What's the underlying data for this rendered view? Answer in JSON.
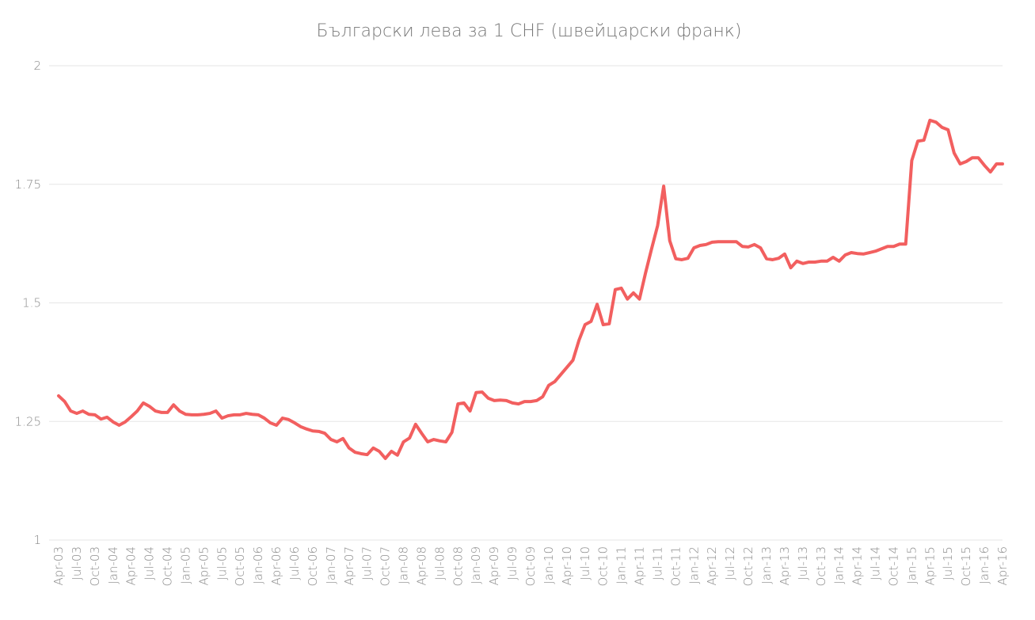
{
  "chart_data": {
    "type": "line",
    "title": "Български лева за 1 CHF (швейцарски франк)",
    "categories": [
      "Apr-03",
      null,
      null,
      "Jul-03",
      null,
      null,
      "Oct-03",
      null,
      null,
      "Jan-04",
      null,
      null,
      "Apr-04",
      null,
      null,
      "Jul-04",
      null,
      null,
      "Oct-04",
      null,
      null,
      "Jan-05",
      null,
      null,
      "Apr-05",
      null,
      null,
      "Jul-05",
      null,
      null,
      "Oct-05",
      null,
      null,
      "Jan-06",
      null,
      null,
      "Apr-06",
      null,
      null,
      "Jul-06",
      null,
      null,
      "Oct-06",
      null,
      null,
      "Jan-07",
      null,
      null,
      "Apr-07",
      null,
      null,
      "Jul-07",
      null,
      null,
      "Oct-07",
      null,
      null,
      "Jan-08",
      null,
      null,
      "Apr-08",
      null,
      null,
      "Jul-08",
      null,
      null,
      "Oct-08",
      null,
      null,
      "Jan-09",
      null,
      null,
      "Apr-09",
      null,
      null,
      "Jul-09",
      null,
      null,
      "Oct-09",
      null,
      null,
      "Jan-10",
      null,
      null,
      "Apr-10",
      null,
      null,
      "Jul-10",
      null,
      null,
      "Oct-10",
      null,
      null,
      "Jan-11",
      null,
      null,
      "Apr-11",
      null,
      null,
      "Jul-11",
      null,
      null,
      "Oct-11",
      null,
      null,
      "Jan-12",
      null,
      null,
      "Apr-12",
      null,
      null,
      "Jul-12",
      null,
      null,
      "Oct-12",
      null,
      null,
      "Jan-13",
      null,
      null,
      "Apr-13",
      null,
      null,
      "Jul-13",
      null,
      null,
      "Oct-13",
      null,
      null,
      "Jan-14",
      null,
      null,
      "Apr-14",
      null,
      null,
      "Jul-14",
      null,
      null,
      "Oct-14",
      null,
      null,
      "Jan-15",
      null,
      null,
      "Apr-15",
      null,
      null,
      "Jul-15",
      null,
      null,
      "Oct-15",
      null,
      null,
      "Jan-16",
      null,
      null,
      "Apr-16"
    ],
    "values": [
      1.304,
      1.292,
      1.272,
      1.267,
      1.272,
      1.265,
      1.264,
      1.255,
      1.259,
      1.249,
      1.242,
      1.249,
      1.26,
      1.272,
      1.289,
      1.282,
      1.272,
      1.269,
      1.269,
      1.285,
      1.272,
      1.265,
      1.264,
      1.264,
      1.265,
      1.267,
      1.272,
      1.257,
      1.262,
      1.264,
      1.264,
      1.267,
      1.265,
      1.264,
      1.257,
      1.247,
      1.242,
      1.257,
      1.254,
      1.247,
      1.239,
      1.234,
      1.23,
      1.229,
      1.225,
      1.212,
      1.207,
      1.214,
      1.194,
      1.185,
      1.182,
      1.18,
      1.194,
      1.187,
      1.172,
      1.187,
      1.179,
      1.207,
      1.215,
      1.244,
      1.225,
      1.207,
      1.212,
      1.209,
      1.207,
      1.227,
      1.287,
      1.289,
      1.272,
      1.311,
      1.312,
      1.299,
      1.294,
      1.295,
      1.294,
      1.289,
      1.287,
      1.292,
      1.292,
      1.294,
      1.302,
      1.326,
      1.334,
      1.349,
      1.364,
      1.379,
      1.421,
      1.454,
      1.461,
      1.497,
      1.454,
      1.456,
      1.528,
      1.531,
      1.508,
      1.521,
      1.508,
      1.563,
      1.614,
      1.663,
      1.746,
      1.631,
      1.593,
      1.591,
      1.594,
      1.616,
      1.621,
      1.623,
      1.628,
      1.629,
      1.629,
      1.629,
      1.629,
      1.619,
      1.618,
      1.623,
      1.616,
      1.593,
      1.591,
      1.594,
      1.603,
      1.574,
      1.588,
      1.583,
      1.586,
      1.586,
      1.588,
      1.588,
      1.596,
      1.588,
      1.601,
      1.606,
      1.604,
      1.603,
      1.606,
      1.609,
      1.614,
      1.619,
      1.619,
      1.624,
      1.624,
      1.8,
      1.841,
      1.843,
      1.885,
      1.881,
      1.87,
      1.865,
      1.816,
      1.793,
      1.798,
      1.806,
      1.806,
      1.79,
      1.776,
      1.793,
      1.793
    ],
    "color": "#f25f5f",
    "ylim": [
      1,
      2
    ],
    "yticks": [
      1,
      1.25,
      1.5,
      1.75,
      2
    ],
    "grid": true
  }
}
